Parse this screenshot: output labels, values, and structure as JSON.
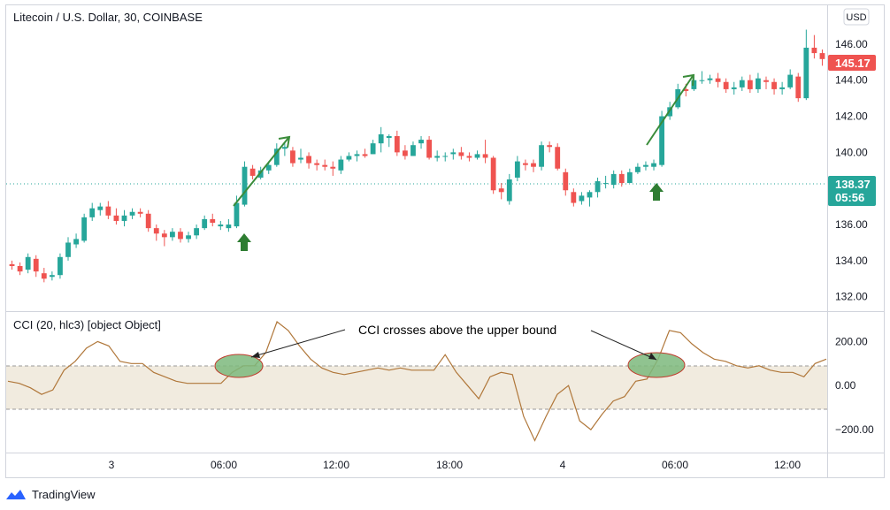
{
  "chart_title": "Litecoin / U.S. Dollar, 30, COINBASE",
  "currency": "USD",
  "price_badge": {
    "last": "145.17",
    "cursor_price": "138.37",
    "countdown": "05:56"
  },
  "colors": {
    "up": "#26a69a",
    "down": "#ef5350",
    "cci_line": "#b0773a",
    "band_fill": "#f1ebdf",
    "arrow": "#2e8b2e",
    "ellipse": "#7cb87c"
  },
  "x_ticks": [
    "3",
    "06:00",
    "12:00",
    "18:00",
    "4",
    "06:00",
    "12:00"
  ],
  "annotation": {
    "text": "CCI crosses above the upper bound"
  },
  "brand": {
    "name": "TradingView"
  },
  "chart_data": [
    {
      "type": "candlestick",
      "title": "Litecoin / U.S. Dollar, 30, COINBASE",
      "y_ticks": [
        132.0,
        134.0,
        136.0,
        138.0,
        140.0,
        142.0,
        144.0,
        146.0
      ],
      "y_tick_labels": [
        "132.00",
        "134.00",
        "136.00",
        "138.00",
        "140.00",
        "142.00",
        "144.00",
        "146.00"
      ],
      "ylim": [
        131.3,
        148.1
      ],
      "up_color": "#26a69a",
      "down_color": "#ef5350",
      "candles": [
        [
          133.8,
          133.7,
          134.0,
          133.5
        ],
        [
          133.7,
          133.4,
          133.9,
          133.2
        ],
        [
          133.5,
          134.2,
          134.4,
          133.3
        ],
        [
          134.1,
          133.4,
          134.3,
          133.1
        ],
        [
          133.3,
          133.0,
          133.6,
          132.8
        ],
        [
          133.1,
          133.2,
          133.4,
          132.9
        ],
        [
          133.2,
          134.2,
          134.4,
          133.0
        ],
        [
          134.2,
          135.0,
          135.3,
          134.0
        ],
        [
          134.9,
          135.2,
          135.5,
          134.7
        ],
        [
          135.1,
          136.4,
          136.6,
          135.0
        ],
        [
          136.4,
          136.9,
          137.2,
          136.2
        ],
        [
          136.8,
          137.0,
          137.2,
          136.5
        ],
        [
          137.0,
          136.5,
          137.3,
          136.3
        ],
        [
          136.5,
          136.2,
          136.9,
          136.0
        ],
        [
          136.2,
          136.5,
          136.8,
          135.9
        ],
        [
          136.5,
          136.7,
          136.9,
          136.3
        ],
        [
          136.7,
          136.6,
          136.9,
          136.4
        ],
        [
          136.6,
          135.8,
          136.8,
          135.6
        ],
        [
          135.8,
          135.5,
          136.0,
          135.1
        ],
        [
          135.5,
          135.3,
          135.7,
          134.8
        ],
        [
          135.3,
          135.6,
          135.8,
          135.1
        ],
        [
          135.6,
          135.2,
          135.8,
          135.0
        ],
        [
          135.2,
          135.4,
          135.6,
          135.0
        ],
        [
          135.4,
          135.8,
          136.0,
          135.2
        ],
        [
          135.8,
          136.3,
          136.5,
          135.7
        ],
        [
          136.3,
          136.1,
          136.6,
          135.9
        ],
        [
          135.9,
          136.0,
          136.2,
          135.7
        ],
        [
          135.8,
          136.0,
          136.3,
          135.6
        ],
        [
          135.9,
          137.2,
          137.6,
          135.8
        ],
        [
          137.1,
          139.2,
          139.5,
          137.0
        ],
        [
          139.1,
          138.7,
          139.3,
          138.5
        ],
        [
          138.6,
          139.0,
          139.2,
          138.5
        ],
        [
          139.0,
          139.3,
          139.5,
          138.8
        ],
        [
          139.3,
          140.2,
          140.5,
          139.2
        ],
        [
          140.2,
          140.3,
          140.5,
          139.8
        ],
        [
          140.1,
          139.4,
          140.3,
          139.2
        ],
        [
          139.6,
          139.7,
          140.2,
          139.4
        ],
        [
          139.8,
          139.4,
          140.0,
          139.1
        ],
        [
          139.4,
          139.3,
          139.6,
          139.0
        ],
        [
          139.3,
          139.2,
          139.6,
          139.0
        ],
        [
          139.2,
          139.1,
          139.5,
          138.7
        ],
        [
          139.0,
          139.6,
          139.8,
          138.8
        ],
        [
          139.6,
          139.8,
          140.0,
          139.5
        ],
        [
          139.8,
          139.9,
          140.1,
          139.5
        ],
        [
          139.9,
          139.8,
          140.2,
          139.7
        ],
        [
          139.9,
          140.5,
          140.7,
          139.9
        ],
        [
          140.5,
          141.0,
          141.4,
          140.0
        ],
        [
          140.8,
          140.9,
          141.0,
          140.3
        ],
        [
          140.9,
          140.0,
          141.2,
          139.8
        ],
        [
          140.1,
          139.8,
          140.4,
          139.6
        ],
        [
          139.8,
          140.4,
          140.6,
          139.8
        ],
        [
          140.5,
          140.7,
          140.9,
          140.2
        ],
        [
          140.7,
          139.7,
          140.9,
          139.6
        ],
        [
          139.7,
          139.8,
          140.1,
          139.5
        ],
        [
          139.8,
          139.8,
          140.0,
          139.5
        ],
        [
          139.9,
          140.0,
          140.2,
          139.6
        ],
        [
          140.0,
          139.8,
          140.3,
          139.6
        ],
        [
          139.8,
          139.7,
          140.0,
          139.5
        ],
        [
          139.7,
          139.9,
          140.1,
          139.6
        ],
        [
          139.9,
          139.7,
          140.7,
          139.4
        ],
        [
          139.7,
          137.9,
          139.8,
          137.7
        ],
        [
          138.0,
          137.8,
          138.3,
          137.4
        ],
        [
          137.3,
          138.5,
          138.8,
          137.1
        ],
        [
          138.6,
          139.5,
          139.8,
          138.4
        ],
        [
          139.4,
          139.3,
          139.6,
          139.0
        ],
        [
          139.4,
          139.2,
          139.6,
          138.9
        ],
        [
          139.2,
          140.4,
          140.6,
          139.0
        ],
        [
          140.4,
          140.3,
          140.6,
          140.0
        ],
        [
          140.3,
          139.1,
          140.5,
          139.0
        ],
        [
          138.9,
          137.9,
          139.1,
          137.6
        ],
        [
          137.8,
          137.2,
          138.0,
          137.0
        ],
        [
          137.3,
          137.6,
          137.8,
          137.1
        ],
        [
          137.5,
          137.8,
          137.9,
          137.0
        ],
        [
          137.8,
          138.4,
          138.6,
          137.5
        ],
        [
          138.3,
          138.3,
          138.7,
          138.0
        ],
        [
          138.2,
          138.8,
          139.0,
          138.0
        ],
        [
          138.8,
          138.3,
          139.0,
          138.1
        ],
        [
          138.3,
          138.9,
          139.1,
          138.3
        ],
        [
          138.9,
          139.2,
          139.4,
          138.8
        ],
        [
          139.2,
          139.3,
          139.5,
          139.0
        ],
        [
          139.2,
          139.4,
          139.6,
          139.0
        ],
        [
          139.3,
          142.0,
          142.3,
          139.2
        ],
        [
          142.0,
          142.5,
          142.8,
          141.8
        ],
        [
          142.5,
          143.5,
          143.8,
          142.4
        ],
        [
          143.5,
          143.4,
          143.8,
          143.1
        ],
        [
          143.5,
          144.0,
          144.2,
          143.4
        ],
        [
          144.0,
          144.0,
          144.5,
          143.8
        ],
        [
          144.0,
          144.1,
          144.3,
          143.8
        ],
        [
          144.1,
          143.9,
          144.4,
          143.6
        ],
        [
          143.9,
          143.5,
          144.1,
          143.3
        ],
        [
          143.5,
          143.6,
          143.9,
          143.2
        ],
        [
          143.6,
          144.0,
          144.2,
          143.4
        ],
        [
          144.0,
          143.5,
          144.3,
          143.3
        ],
        [
          143.5,
          144.1,
          144.4,
          143.3
        ],
        [
          144.0,
          143.9,
          144.2,
          143.5
        ],
        [
          143.9,
          143.5,
          144.1,
          143.2
        ],
        [
          143.5,
          143.6,
          143.9,
          143.2
        ],
        [
          143.6,
          144.3,
          144.6,
          143.5
        ],
        [
          144.2,
          143.0,
          144.4,
          142.8
        ],
        [
          143.0,
          145.8,
          146.8,
          142.9
        ],
        [
          145.8,
          145.5,
          146.5,
          145.2
        ],
        [
          145.5,
          145.17,
          145.7,
          144.8
        ]
      ]
    },
    {
      "type": "line",
      "title": "CCI (20, hlc3) [object Object]",
      "y_ticks": [
        -200,
        0,
        200
      ],
      "y_tick_labels": [
        "−200.00",
        "0.00",
        "200.00"
      ],
      "ylim": [
        -300,
        330
      ],
      "upper_bound": 100,
      "lower_bound": -100,
      "values": [
        20,
        10,
        -10,
        -40,
        -20,
        70,
        110,
        170,
        200,
        180,
        110,
        100,
        100,
        60,
        40,
        20,
        10,
        10,
        10,
        10,
        60,
        90,
        90,
        150,
        290,
        250,
        180,
        120,
        80,
        60,
        50,
        60,
        70,
        80,
        70,
        80,
        70,
        70,
        70,
        140,
        60,
        0,
        -60,
        40,
        60,
        50,
        -140,
        -250,
        -140,
        -40,
        0,
        -160,
        -200,
        -130,
        -70,
        -50,
        20,
        30,
        120,
        250,
        240,
        190,
        150,
        120,
        110,
        90,
        80,
        90,
        70,
        60,
        60,
        40,
        100,
        120
      ]
    }
  ]
}
